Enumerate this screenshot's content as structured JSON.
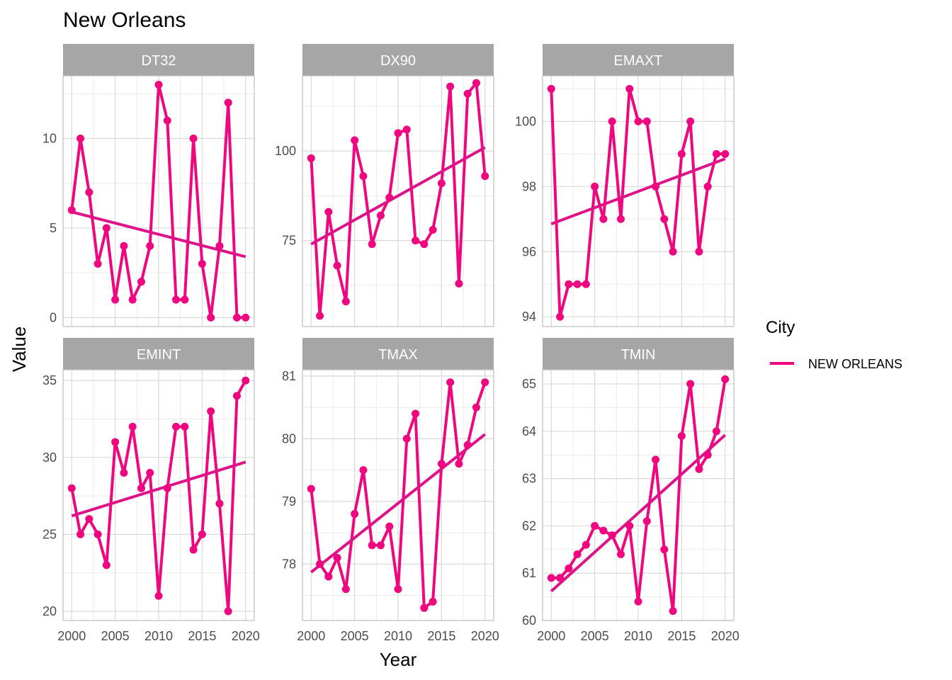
{
  "title": "New Orleans",
  "x_label": "Year",
  "y_label": "Value",
  "legend": {
    "title": "City",
    "items": [
      {
        "label": "NEW ORLEANS",
        "color": "#F0067F"
      }
    ]
  },
  "colors": {
    "series": "#F0067F",
    "trend": "#E0128A",
    "strip": "#A6A6A6",
    "grid_major": "#D9D9D9",
    "grid_minor": "#EBEBEB",
    "panel_border": "#BDBDBD"
  },
  "chart_data": [
    {
      "type": "line",
      "panel": "DT32",
      "xlim": [
        1999,
        2021
      ],
      "ylim": [
        -0.5,
        13.5
      ],
      "x_ticks": [
        2000,
        2005,
        2010,
        2015,
        2020
      ],
      "y_ticks": [
        0,
        5,
        10
      ],
      "x": [
        2000,
        2001,
        2002,
        2003,
        2004,
        2005,
        2006,
        2007,
        2008,
        2009,
        2010,
        2011,
        2012,
        2013,
        2014,
        2015,
        2016,
        2017,
        2018,
        2019,
        2020
      ],
      "values": [
        6,
        10,
        7,
        3,
        5,
        1,
        4,
        1,
        2,
        4,
        13,
        11,
        1,
        1,
        10,
        3,
        0,
        4,
        12,
        0,
        0
      ],
      "trend": {
        "x": [
          2000,
          2020
        ],
        "y": [
          5.9,
          3.4
        ]
      }
    },
    {
      "type": "line",
      "panel": "DX90",
      "xlim": [
        1999,
        2021
      ],
      "ylim": [
        51,
        121
      ],
      "x_ticks": [
        2000,
        2005,
        2010,
        2015,
        2020
      ],
      "y_ticks": [
        75,
        100
      ],
      "x": [
        2000,
        2001,
        2002,
        2003,
        2004,
        2005,
        2006,
        2007,
        2008,
        2009,
        2010,
        2011,
        2012,
        2013,
        2014,
        2015,
        2016,
        2017,
        2018,
        2019,
        2020
      ],
      "values": [
        98,
        54,
        83,
        68,
        58,
        103,
        93,
        74,
        82,
        87,
        105,
        106,
        75,
        74,
        78,
        91,
        118,
        63,
        116,
        119,
        93
      ],
      "trend": {
        "x": [
          2000,
          2020
        ],
        "y": [
          74,
          101
        ]
      }
    },
    {
      "type": "line",
      "panel": "EMAXT",
      "xlim": [
        1999,
        2021
      ],
      "ylim": [
        93.7,
        101.4
      ],
      "x_ticks": [
        2000,
        2005,
        2010,
        2015,
        2020
      ],
      "y_ticks": [
        94,
        96,
        98,
        100
      ],
      "x": [
        2000,
        2001,
        2002,
        2003,
        2004,
        2005,
        2006,
        2007,
        2008,
        2009,
        2010,
        2011,
        2012,
        2013,
        2014,
        2015,
        2016,
        2017,
        2018,
        2019,
        2020
      ],
      "values": [
        101,
        94,
        95,
        95,
        95,
        98,
        97,
        100,
        97,
        101,
        100,
        100,
        98,
        97,
        96,
        99,
        100,
        96,
        98,
        99,
        99
      ],
      "trend": {
        "x": [
          2000,
          2020
        ],
        "y": [
          96.85,
          98.85
        ]
      }
    },
    {
      "type": "line",
      "panel": "EMINT",
      "xlim": [
        1999,
        2021
      ],
      "ylim": [
        19.4,
        35.7
      ],
      "x_ticks": [
        2000,
        2005,
        2010,
        2015,
        2020
      ],
      "y_ticks": [
        20,
        25,
        30,
        35
      ],
      "x": [
        2000,
        2001,
        2002,
        2003,
        2004,
        2005,
        2006,
        2007,
        2008,
        2009,
        2010,
        2011,
        2012,
        2013,
        2014,
        2015,
        2016,
        2017,
        2018,
        2019,
        2020
      ],
      "values": [
        28,
        25,
        26,
        25,
        23,
        31,
        29,
        32,
        28,
        29,
        21,
        28,
        32,
        32,
        24,
        25,
        33,
        27,
        20,
        34,
        35
      ],
      "trend": {
        "x": [
          2000,
          2020
        ],
        "y": [
          26.2,
          29.7
        ]
      }
    },
    {
      "type": "line",
      "panel": "TMAX",
      "xlim": [
        1999,
        2021
      ],
      "ylim": [
        77.1,
        81.1
      ],
      "x_ticks": [
        2000,
        2005,
        2010,
        2015,
        2020
      ],
      "y_ticks": [
        78,
        79,
        80,
        81
      ],
      "x": [
        2000,
        2001,
        2002,
        2003,
        2004,
        2005,
        2006,
        2007,
        2008,
        2009,
        2010,
        2011,
        2012,
        2013,
        2014,
        2015,
        2016,
        2017,
        2018,
        2019,
        2020
      ],
      "values": [
        79.2,
        78.0,
        77.8,
        78.1,
        77.6,
        78.8,
        79.5,
        78.3,
        78.3,
        78.6,
        77.6,
        80.0,
        80.4,
        77.3,
        77.4,
        79.6,
        80.9,
        79.6,
        79.9,
        80.5,
        80.9
      ],
      "trend": {
        "x": [
          2000,
          2020
        ],
        "y": [
          77.87,
          80.07
        ]
      }
    },
    {
      "type": "line",
      "panel": "TMIN",
      "xlim": [
        1999,
        2021
      ],
      "ylim": [
        60.0,
        65.3
      ],
      "x_ticks": [
        2000,
        2005,
        2010,
        2015,
        2020
      ],
      "y_ticks": [
        60,
        61,
        62,
        63,
        64,
        65
      ],
      "x": [
        2000,
        2001,
        2002,
        2003,
        2004,
        2005,
        2006,
        2007,
        2008,
        2009,
        2010,
        2011,
        2012,
        2013,
        2014,
        2015,
        2016,
        2017,
        2018,
        2019,
        2020
      ],
      "values": [
        60.9,
        60.9,
        61.1,
        61.4,
        61.6,
        62.0,
        61.9,
        61.8,
        61.4,
        62.0,
        60.4,
        62.1,
        63.4,
        61.5,
        60.2,
        63.9,
        65.0,
        63.2,
        63.5,
        64.0,
        65.1
      ],
      "trend": {
        "x": [
          2000,
          2020
        ],
        "y": [
          60.62,
          63.92
        ]
      }
    }
  ]
}
